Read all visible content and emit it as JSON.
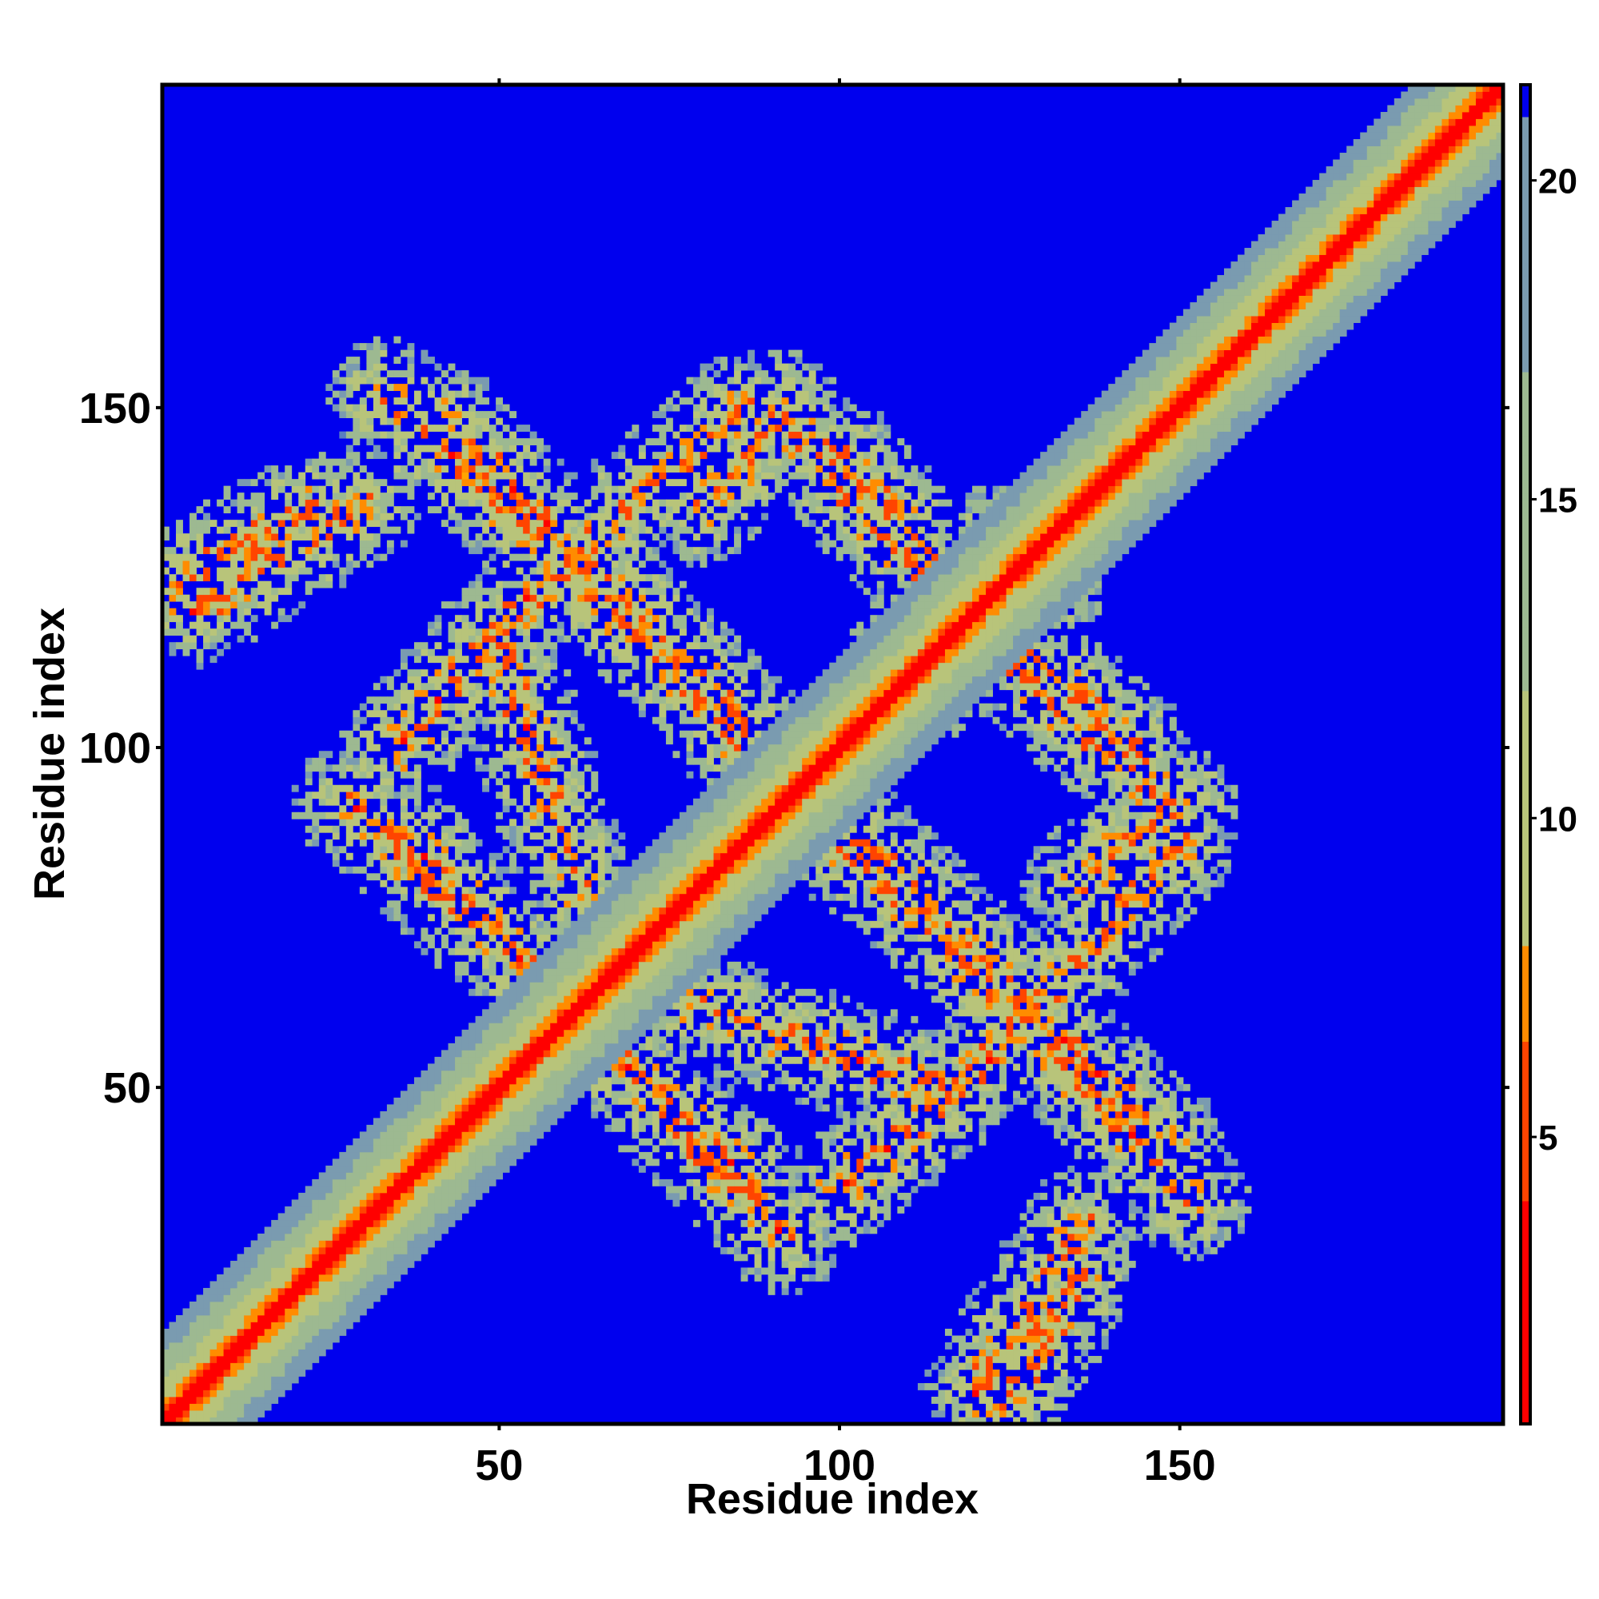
{
  "chart_data": {
    "type": "heatmap",
    "title": "",
    "xlabel": "Residue index",
    "ylabel": "Residue index",
    "n_residues": 197,
    "xlim": [
      1,
      197
    ],
    "ylim": [
      1,
      197
    ],
    "x_ticks": [
      50,
      100,
      150
    ],
    "y_ticks": [
      50,
      100,
      150
    ],
    "colorbar": {
      "ticks": [
        5,
        10,
        15,
        20
      ],
      "range": [
        0.5,
        21.5
      ],
      "stops": [
        {
          "value": 0.5,
          "color": "#ff0000"
        },
        {
          "value": 4.0,
          "color": "#ff4400"
        },
        {
          "value": 6.5,
          "color": "#ff8c00"
        },
        {
          "value": 8.0,
          "color": "#ffa500"
        },
        {
          "value": 8.01,
          "color": "#b8c47a"
        },
        {
          "value": 12.0,
          "color": "#9db991"
        },
        {
          "value": 17.0,
          "color": "#7a9bb0"
        },
        {
          "value": 21.0,
          "color": "#5a7ec0"
        },
        {
          "value": 21.5,
          "color": "#0000ee"
        }
      ]
    },
    "background_color": "#0000ee",
    "diagonal": {
      "half_width_residues": 7,
      "description": "distance increases away from diagonal"
    },
    "contact_bands": [
      {
        "from": [
          33,
          152
        ],
        "to": [
          75,
          113
        ]
      },
      {
        "from": [
          75,
          113
        ],
        "to": [
          93,
          91
        ]
      },
      {
        "from": [
          28,
          92
        ],
        "to": [
          85,
          38
        ]
      },
      {
        "from": [
          86,
          150
        ],
        "to": [
          55,
          123
        ]
      },
      {
        "from": [
          55,
          123
        ],
        "to": [
          35,
          100
        ]
      },
      {
        "from": [
          100,
          143
        ],
        "to": [
          135,
          103
        ]
      },
      {
        "from": [
          135,
          103
        ],
        "to": [
          148,
          93
        ]
      },
      {
        "from": [
          93,
          96
        ],
        "to": [
          148,
          42
        ]
      },
      {
        "from": [
          122,
          130
        ],
        "to": [
          108,
          112
        ]
      },
      {
        "from": [
          78,
          62
        ],
        "to": [
          115,
          50
        ]
      },
      {
        "from": [
          2,
          124
        ],
        "to": [
          22,
          135
        ]
      },
      {
        "from": [
          120,
          5
        ],
        "to": [
          136,
          30
        ]
      },
      {
        "from": [
          135,
          80
        ],
        "to": [
          150,
          92
        ]
      }
    ]
  }
}
